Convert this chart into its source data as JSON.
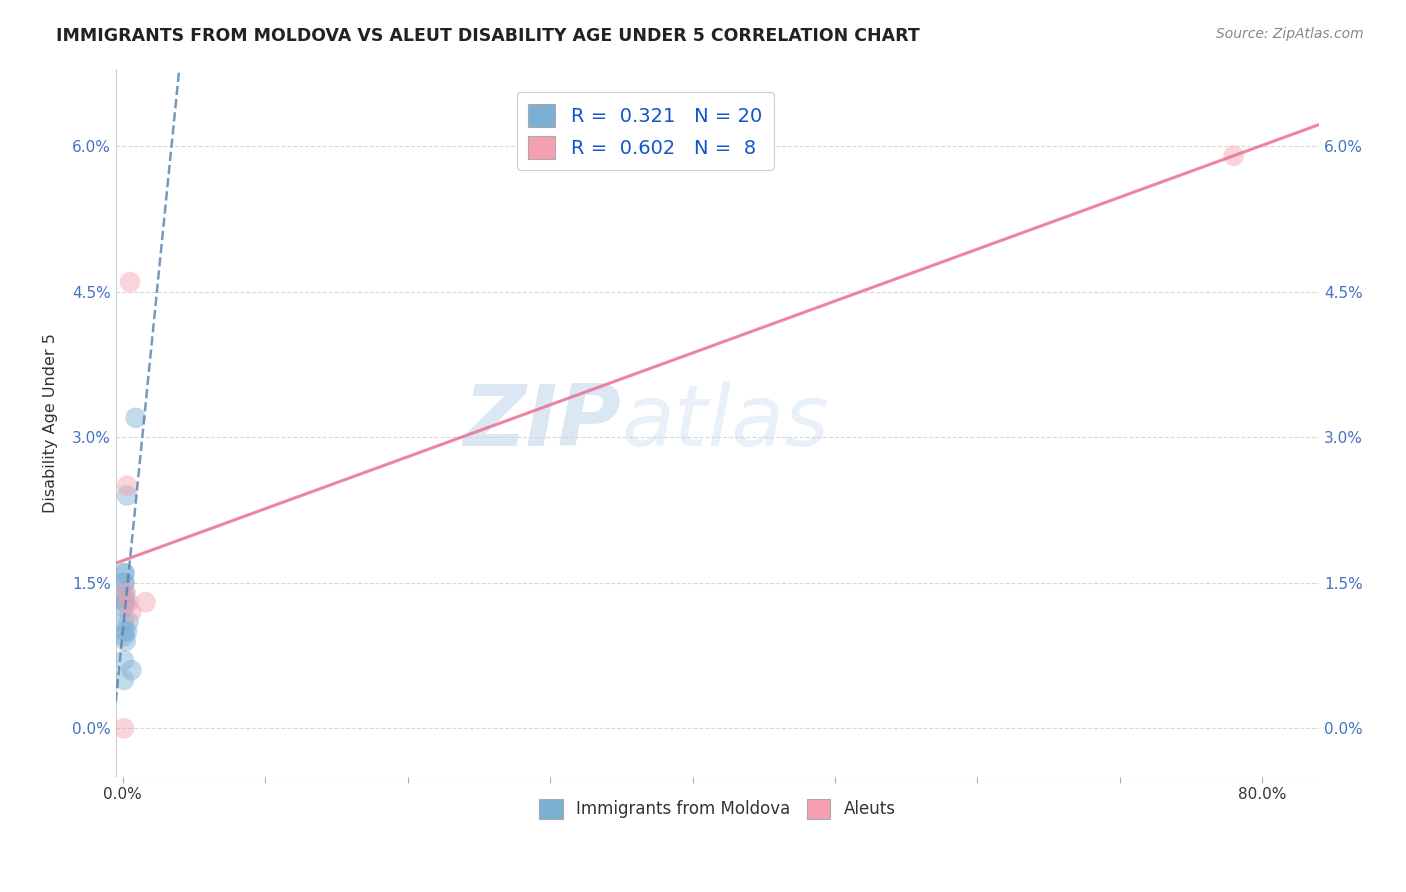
{
  "title": "IMMIGRANTS FROM MOLDOVA VS ALEUT DISABILITY AGE UNDER 5 CORRELATION CHART",
  "source": "Source: ZipAtlas.com",
  "xlabel": "",
  "ylabel": "Disability Age Under 5",
  "xlim": [
    -0.005,
    0.84
  ],
  "ylim": [
    -0.005,
    0.068
  ],
  "yticks": [
    0.0,
    0.015,
    0.03,
    0.045,
    0.06
  ],
  "ytick_labels": [
    "0.0%",
    "1.5%",
    "3.0%",
    "4.5%",
    "6.0%"
  ],
  "xticks": [
    0.0,
    0.1,
    0.2,
    0.3,
    0.4,
    0.5,
    0.6,
    0.7,
    0.8
  ],
  "xtick_labels": [
    "0.0%",
    "",
    "",
    "",
    "",
    "",
    "",
    "",
    "80.0%"
  ],
  "blue_scatter_x": [
    0.0008,
    0.0008,
    0.0008,
    0.0008,
    0.0009,
    0.0009,
    0.001,
    0.001,
    0.001,
    0.001,
    0.0012,
    0.0012,
    0.0015,
    0.0018,
    0.002,
    0.003,
    0.003,
    0.004,
    0.006,
    0.009
  ],
  "blue_scatter_y": [
    0.005,
    0.007,
    0.0095,
    0.011,
    0.0125,
    0.0135,
    0.013,
    0.014,
    0.015,
    0.016,
    0.015,
    0.016,
    0.01,
    0.013,
    0.009,
    0.024,
    0.01,
    0.011,
    0.006,
    0.032
  ],
  "pink_scatter_x": [
    0.0008,
    0.002,
    0.003,
    0.004,
    0.005,
    0.006,
    0.016,
    0.78
  ],
  "pink_scatter_y": [
    0.0,
    0.014,
    0.025,
    0.013,
    0.046,
    0.012,
    0.013,
    0.059
  ],
  "blue_R": 0.321,
  "blue_N": 20,
  "pink_R": 0.602,
  "pink_N": 8,
  "blue_color": "#7bafd4",
  "pink_color": "#f4a0b0",
  "blue_line_color": "#5580b0",
  "pink_line_color": "#e87090",
  "legend_label_blue": "Immigrants from Moldova",
  "legend_label_pink": "Aleuts",
  "watermark_zip": "ZIP",
  "watermark_atlas": "atlas",
  "background_color": "#ffffff",
  "grid_color": "#d8d8d8"
}
